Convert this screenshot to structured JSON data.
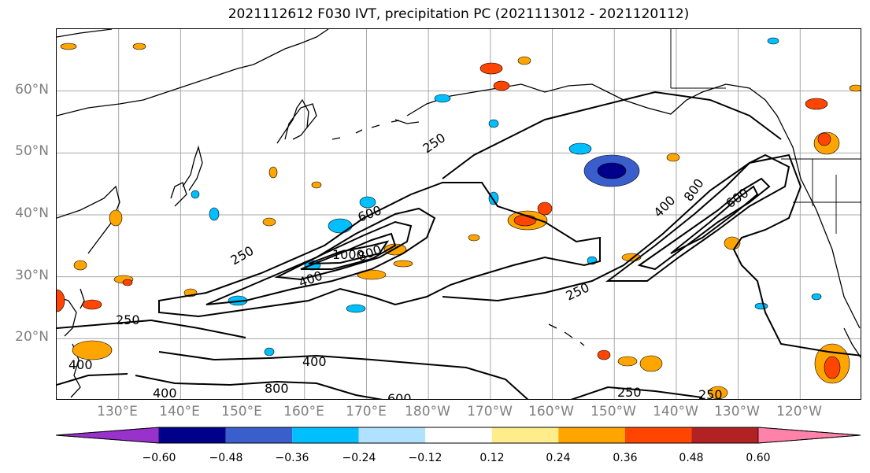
{
  "title": "2021112612 F030 IVT, precipitation PC (2021113012 - 2021120112)",
  "lat_labels": [
    "60°N",
    "50°N",
    "40°N",
    "30°N",
    "20°N"
  ],
  "lon_labels": [
    "130°E",
    "140°E",
    "150°E",
    "160°E",
    "170°E",
    "180°W",
    "170°W",
    "160°W",
    "150°W",
    "140°W",
    "130°W",
    "120°W"
  ],
  "ivt_contour_labels": [
    "250",
    "250",
    "250",
    "250",
    "250",
    "250",
    "400",
    "400",
    "400",
    "400",
    "400",
    "600",
    "600",
    "600",
    "800",
    "800",
    "800",
    "1000"
  ],
  "colorbar": {
    "ticks": [
      "−0.60",
      "−0.48",
      "−0.36",
      "−0.24",
      "−0.12",
      "0.12",
      "0.24",
      "0.36",
      "0.48",
      "0.60"
    ],
    "colors": [
      "#9932cc",
      "#00008b",
      "#3a5fcd",
      "#00bfff",
      "#b0e2ff",
      "#ffffff",
      "#ffec8b",
      "#ffa500",
      "#ff4500",
      "#b22222",
      "#ff82ab"
    ]
  },
  "chart_data": {
    "type": "map",
    "projection": "cylindrical",
    "lon_range_degE": [
      120,
      250
    ],
    "lat_range_degN": [
      10,
      70
    ],
    "gridlines": true,
    "ivt_contour_levels": [
      250,
      400,
      600,
      800,
      1000
    ],
    "shading": "precipitation PC",
    "colorbar_levels": [
      -0.6,
      -0.48,
      -0.36,
      -0.24,
      -0.12,
      0.12,
      0.24,
      0.36,
      0.48,
      0.6
    ]
  }
}
